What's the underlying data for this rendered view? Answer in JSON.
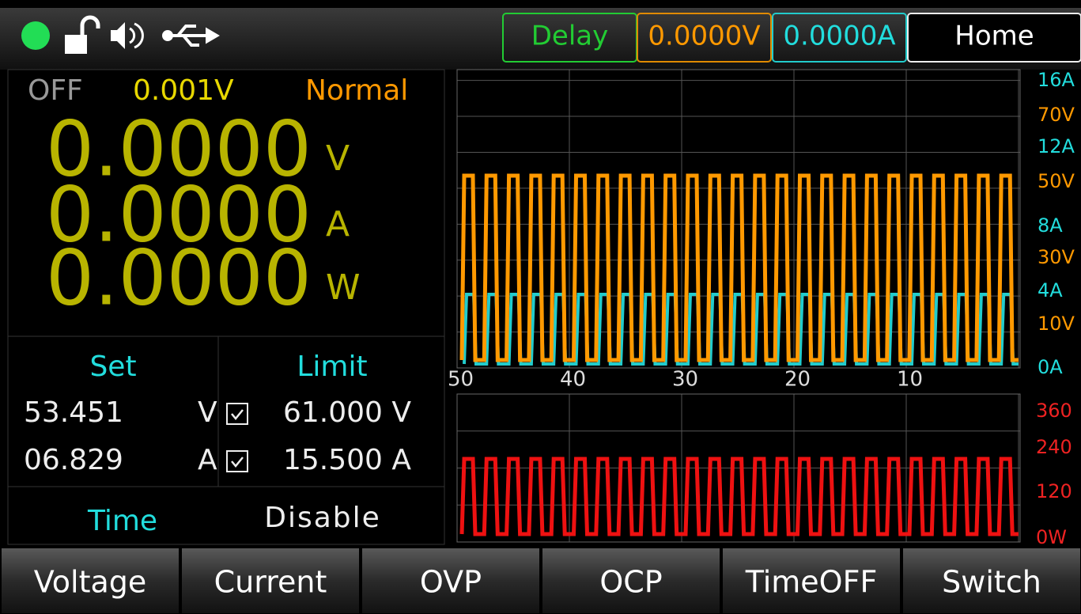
{
  "status_bar": {
    "buttons": [
      "Delay",
      "0.0000V",
      "0.0000A",
      "Home"
    ]
  },
  "status_line": {
    "output": "OFF",
    "value": "0.001V",
    "mode": "Normal"
  },
  "readings": [
    {
      "value": "0.0000",
      "unit": "V"
    },
    {
      "value": "0.0000",
      "unit": "A"
    },
    {
      "value": "0.0000",
      "unit": "W"
    }
  ],
  "settings": {
    "set_header": "Set",
    "limit_header": "Limit",
    "rows": [
      {
        "set": "53.451",
        "unit": "V",
        "limit": "61.000 V"
      },
      {
        "set": "06.829",
        "unit": "A",
        "limit": "15.500 A"
      }
    ]
  },
  "time": {
    "label": "Time",
    "value": "Disable"
  },
  "graph": {
    "x_labels": [
      "50",
      "40",
      "30",
      "20",
      "10"
    ],
    "right_labels": [
      "16A",
      "70V",
      "12A",
      "50V",
      "8A",
      "30V",
      "4A",
      "10V",
      "0A"
    ],
    "power_labels": [
      "360",
      "240",
      "120",
      "0W"
    ]
  },
  "menu": [
    "Voltage",
    "Current",
    "OVP",
    "OCP",
    "TimeOFF",
    "Switch"
  ]
}
